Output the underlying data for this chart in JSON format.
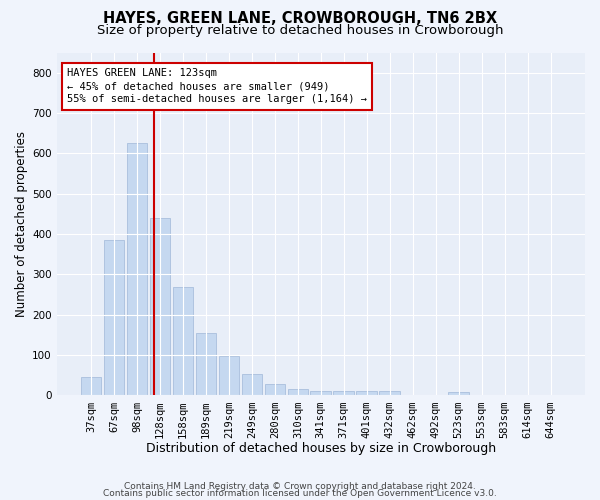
{
  "title1": "HAYES, GREEN LANE, CROWBOROUGH, TN6 2BX",
  "title2": "Size of property relative to detached houses in Crowborough",
  "xlabel": "Distribution of detached houses by size in Crowborough",
  "ylabel": "Number of detached properties",
  "categories": [
    "37sqm",
    "67sqm",
    "98sqm",
    "128sqm",
    "158sqm",
    "189sqm",
    "219sqm",
    "249sqm",
    "280sqm",
    "310sqm",
    "341sqm",
    "371sqm",
    "401sqm",
    "432sqm",
    "462sqm",
    "492sqm",
    "523sqm",
    "553sqm",
    "583sqm",
    "614sqm",
    "644sqm"
  ],
  "values": [
    47,
    385,
    625,
    440,
    268,
    155,
    97,
    52,
    28,
    15,
    10,
    12,
    10,
    10,
    0,
    0,
    8,
    0,
    0,
    0,
    0
  ],
  "bar_color": "#c5d8f0",
  "bar_edge_color": "#a0b8d8",
  "annotation_line1": "HAYES GREEN LANE: 123sqm",
  "annotation_line2": "← 45% of detached houses are smaller (949)",
  "annotation_line3": "55% of semi-detached houses are larger (1,164) →",
  "annotation_box_facecolor": "#ffffff",
  "annotation_box_edgecolor": "#cc0000",
  "red_line_x": 2.75,
  "ylim": [
    0,
    850
  ],
  "yticks": [
    0,
    100,
    200,
    300,
    400,
    500,
    600,
    700,
    800
  ],
  "axes_bg": "#e8eef8",
  "grid_color": "#ffffff",
  "footer1": "Contains HM Land Registry data © Crown copyright and database right 2024.",
  "footer2": "Contains public sector information licensed under the Open Government Licence v3.0.",
  "title1_fontsize": 10.5,
  "title2_fontsize": 9.5,
  "xlabel_fontsize": 9,
  "ylabel_fontsize": 8.5,
  "tick_fontsize": 7.5,
  "annot_fontsize": 7.5,
  "footer_fontsize": 6.5
}
